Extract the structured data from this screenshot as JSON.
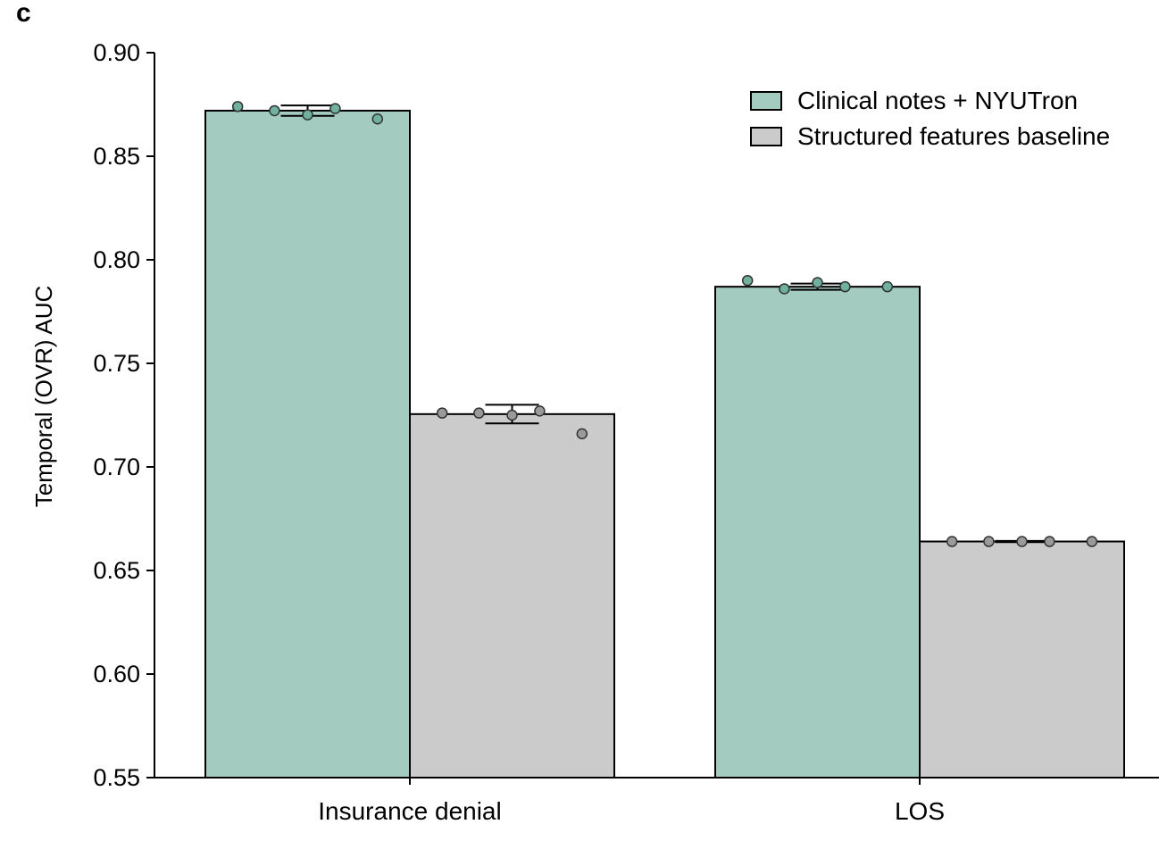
{
  "panel_label": "c",
  "colors": {
    "notes": "#a3cbbf",
    "structured": "#cbcbcb",
    "notes_point": "#6fb09e",
    "structured_point": "#9a9a9a",
    "axis": "#000000"
  },
  "chart_data": {
    "type": "bar",
    "title": "",
    "ylabel": "Temporal (OVR) AUC",
    "xlabel": "",
    "ylim": [
      0.55,
      0.9
    ],
    "yticks": [
      "0.55",
      "0.60",
      "0.65",
      "0.70",
      "0.75",
      "0.80",
      "0.85",
      "0.90"
    ],
    "categories": [
      "Insurance denial",
      "LOS"
    ],
    "legend_position": "top-right",
    "grid": false,
    "series": [
      {
        "name": "Clinical notes + NYUTron",
        "color": "#a3cbbf",
        "values": [
          0.872,
          0.787
        ],
        "error": [
          0.0025,
          0.0015
        ],
        "points": [
          [
            0.874,
            0.872,
            0.87,
            0.873,
            0.868
          ],
          [
            0.79,
            0.786,
            0.789,
            0.787,
            0.787
          ]
        ]
      },
      {
        "name": "Structured features baseline",
        "color": "#cbcbcb",
        "values": [
          0.7255,
          0.664
        ],
        "error": [
          0.0045,
          0.0003
        ],
        "points": [
          [
            0.726,
            0.726,
            0.725,
            0.727,
            0.716
          ],
          [
            0.664,
            0.664,
            0.664,
            0.664,
            0.664
          ]
        ]
      }
    ]
  }
}
